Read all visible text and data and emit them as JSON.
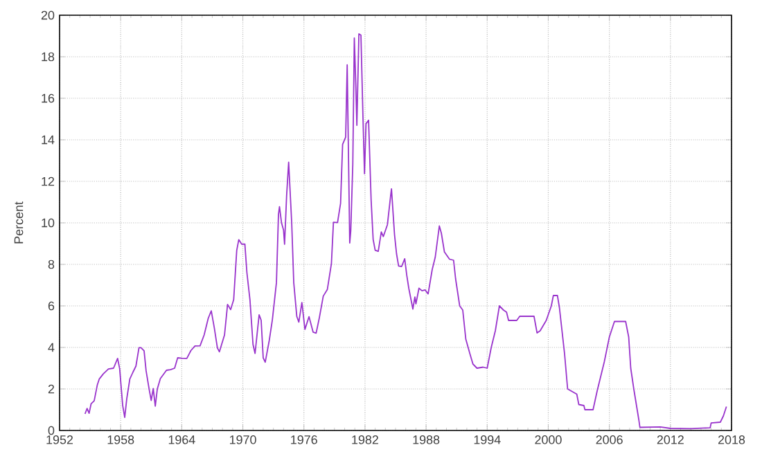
{
  "chart_data": {
    "type": "line",
    "ylabel": "Percent",
    "x": [
      1954.5,
      1954.7,
      1954.9,
      1955.1,
      1955.4,
      1955.7,
      1955.9,
      1956.3,
      1956.8,
      1957.3,
      1957.7,
      1957.9,
      1958.2,
      1958.4,
      1958.6,
      1958.9,
      1959.2,
      1959.5,
      1959.8,
      1960.0,
      1960.3,
      1960.5,
      1960.8,
      1961.0,
      1961.2,
      1961.4,
      1961.6,
      1961.9,
      1962.2,
      1962.5,
      1962.9,
      1963.3,
      1963.6,
      1964.0,
      1964.5,
      1964.9,
      1965.3,
      1965.8,
      1966.2,
      1966.6,
      1966.9,
      1967.2,
      1967.5,
      1967.7,
      1967.9,
      1968.2,
      1968.5,
      1968.8,
      1969.1,
      1969.4,
      1969.6,
      1969.9,
      1970.2,
      1970.4,
      1970.7,
      1971.0,
      1971.2,
      1971.6,
      1971.8,
      1972.0,
      1972.2,
      1972.6,
      1972.9,
      1973.3,
      1973.5,
      1973.6,
      1973.8,
      1974.0,
      1974.1,
      1974.3,
      1974.5,
      1974.8,
      1975.0,
      1975.3,
      1975.5,
      1975.8,
      1976.1,
      1976.5,
      1976.9,
      1977.2,
      1977.5,
      1977.9,
      1978.3,
      1978.7,
      1978.9,
      1979.3,
      1979.6,
      1979.8,
      1980.1,
      1980.25,
      1980.5,
      1980.6,
      1980.8,
      1980.95,
      1981.1,
      1981.2,
      1981.4,
      1981.6,
      1981.8,
      1981.95,
      1982.1,
      1982.35,
      1982.6,
      1982.8,
      1983.0,
      1983.3,
      1983.6,
      1983.8,
      1984.2,
      1984.5,
      1984.6,
      1984.9,
      1985.1,
      1985.3,
      1985.6,
      1985.9,
      1986.1,
      1986.3,
      1986.7,
      1986.9,
      1987.0,
      1987.3,
      1987.6,
      1987.9,
      1988.2,
      1988.6,
      1988.9,
      1989.3,
      1989.5,
      1989.8,
      1990.3,
      1990.7,
      1990.9,
      1991.3,
      1991.6,
      1991.9,
      1992.3,
      1992.6,
      1993.0,
      1993.6,
      1994.0,
      1994.4,
      1994.8,
      1995.2,
      1995.6,
      1995.9,
      1996.1,
      1996.9,
      1997.2,
      1998.6,
      1998.9,
      1999.2,
      1999.8,
      2000.3,
      2000.5,
      2000.9,
      2001.1,
      2001.6,
      2001.9,
      2002.8,
      2003.0,
      2003.5,
      2003.6,
      2004.4,
      2004.8,
      2005.5,
      2006.0,
      2006.5,
      2007.6,
      2007.9,
      2008.1,
      2008.4,
      2008.9,
      2009.0,
      2011.0,
      2012.0,
      2014.0,
      2015.9,
      2016.0,
      2016.9,
      2017.2,
      2017.5
    ],
    "series": [
      {
        "color": "#9933cc",
        "values": [
          0.8,
          1.06,
          0.83,
          1.29,
          1.43,
          2.18,
          2.48,
          2.73,
          2.96,
          3.0,
          3.47,
          2.98,
          1.2,
          0.63,
          1.53,
          2.48,
          2.8,
          3.1,
          3.99,
          3.99,
          3.84,
          2.87,
          1.98,
          1.45,
          2.02,
          1.17,
          2.0,
          2.5,
          2.7,
          2.9,
          2.93,
          3.0,
          3.5,
          3.48,
          3.47,
          3.85,
          4.07,
          4.08,
          4.6,
          5.4,
          5.76,
          4.94,
          3.98,
          3.79,
          4.12,
          4.6,
          6.07,
          5.82,
          6.3,
          8.67,
          9.19,
          8.97,
          8.98,
          7.6,
          6.29,
          4.14,
          3.71,
          5.57,
          5.31,
          3.5,
          3.29,
          4.35,
          5.33,
          7.12,
          10.4,
          10.78,
          10.0,
          9.65,
          8.97,
          11.3,
          12.92,
          10.0,
          7.13,
          5.49,
          5.22,
          6.16,
          4.87,
          5.48,
          4.74,
          4.69,
          5.39,
          6.47,
          6.79,
          8.04,
          10.03,
          10.01,
          10.94,
          13.78,
          14.13,
          17.61,
          9.03,
          9.61,
          12.81,
          18.9,
          16.57,
          14.7,
          19.1,
          19.04,
          15.08,
          12.37,
          14.78,
          14.94,
          11.1,
          9.2,
          8.68,
          8.63,
          9.56,
          9.34,
          9.91,
          11.23,
          11.64,
          9.43,
          8.5,
          7.92,
          7.9,
          8.27,
          7.48,
          6.85,
          5.85,
          6.43,
          6.1,
          6.85,
          6.73,
          6.77,
          6.58,
          7.75,
          8.35,
          9.85,
          9.5,
          8.6,
          8.25,
          8.2,
          7.3,
          6.0,
          5.8,
          4.4,
          3.7,
          3.2,
          3.0,
          3.05,
          3.0,
          4.0,
          4.8,
          6.0,
          5.8,
          5.7,
          5.3,
          5.3,
          5.5,
          5.5,
          4.7,
          4.8,
          5.3,
          6.0,
          6.5,
          6.5,
          5.9,
          3.7,
          2.0,
          1.75,
          1.25,
          1.2,
          1.0,
          1.0,
          1.9,
          3.3,
          4.5,
          5.25,
          5.25,
          4.5,
          3.0,
          2.0,
          0.5,
          0.15,
          0.17,
          0.1,
          0.09,
          0.13,
          0.36,
          0.4,
          0.7,
          1.15
        ]
      }
    ],
    "xlim": [
      1952,
      2018
    ],
    "ylim": [
      0,
      20
    ],
    "xticks": [
      1952,
      1958,
      1964,
      1970,
      1976,
      1982,
      1988,
      1994,
      2000,
      2006,
      2012,
      2018
    ],
    "yticks": [
      0,
      2,
      4,
      6,
      8,
      10,
      12,
      14,
      16,
      18,
      20
    ],
    "grid": true,
    "marker": "none",
    "line_style": "solid"
  }
}
